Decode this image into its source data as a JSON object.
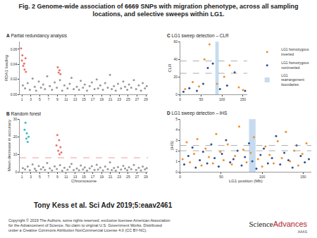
{
  "header": {
    "lines": [
      "Fig. 2 Genome-wide association of 6669 SNPs with migration phenotype, across all sampling",
      "locations, and selective sweeps within LG1."
    ]
  },
  "chart_data": [
    {
      "type": "scatter",
      "panel": "A",
      "title": "Partial redundancy analysis",
      "ylabel": "RDA1 loading",
      "xlim": [
        0.5,
        29.5
      ],
      "xticks": [
        1,
        3,
        5,
        7,
        9,
        11,
        13,
        15,
        17,
        19,
        21,
        23,
        25,
        27,
        29
      ],
      "ylim": [
        0,
        0.07
      ],
      "yticks": [
        {
          "value": 0,
          "label": "0.00"
        },
        {
          "value": 0.02,
          "label": "0.02"
        },
        {
          "value": 0.04,
          "label": "0.04"
        },
        {
          "value": 0.06,
          "label": "0.06"
        }
      ],
      "grid": false,
      "marker": "circle",
      "series": [
        {
          "color": "#9a9a9a",
          "x": [
            1.2,
            1.7,
            2.3,
            2.8,
            3.4,
            3.9,
            4.2,
            4.8,
            5.3,
            5.8,
            6.2,
            6.7,
            7.3,
            7.8,
            8.4,
            8.9,
            9.6,
            10.1,
            10.6,
            11.3,
            11.8,
            12.2,
            12.7,
            13.4,
            13.9,
            14.3,
            14.8,
            15.2,
            15.7,
            16.3,
            16.8,
            17.4,
            17.9,
            18.2,
            18.7,
            19.3,
            19.8,
            20.4,
            20.9,
            21.3,
            21.8,
            22.2,
            22.7,
            23.4,
            23.9,
            24.3,
            24.8,
            25.2,
            25.7,
            26.3,
            26.8,
            27.4,
            27.9,
            28.3,
            28.8,
            29.2
          ],
          "values": [
            0.012,
            0.008,
            0.015,
            0.006,
            0.021,
            0.01,
            0.005,
            0.017,
            0.009,
            0.013,
            0.007,
            0.024,
            0.011,
            0.006,
            0.016,
            0.009,
            0.019,
            0.005,
            0.012,
            0.008,
            0.014,
            0.022,
            0.007,
            0.01,
            0.006,
            0.018,
            0.009,
            0.013,
            0.005,
            0.011,
            0.016,
            0.007,
            0.02,
            0.008,
            0.012,
            0.006,
            0.015,
            0.009,
            0.026,
            0.007,
            0.011,
            0.005,
            0.014,
            0.008,
            0.017,
            0.01,
            0.006,
            0.013,
            0.009,
            0.019,
            0.007,
            0.012,
            0.005,
            0.015,
            0.008,
            0.011
          ]
        },
        {
          "color": "#e8726b",
          "x": [
            0.8,
            1.0,
            1.1,
            1.3,
            1.5,
            1.6,
            1.8,
            1.9,
            9.1,
            9.3,
            9.5,
            9.7
          ],
          "values": [
            0.061,
            0.045,
            0.052,
            0.038,
            0.041,
            0.033,
            0.048,
            0.03,
            0.036,
            0.029,
            0.032,
            0.027
          ]
        }
      ]
    },
    {
      "type": "scatter",
      "panel": "B",
      "title": "Random forest",
      "xlabel": "Chromosome",
      "ylabel": "Mean decrease in accuracy",
      "xlim": [
        0.5,
        29.5
      ],
      "xticks": [
        1,
        3,
        5,
        7,
        9,
        11,
        13,
        15,
        17,
        19,
        21,
        23,
        25,
        27,
        29
      ],
      "ylim": [
        0,
        30
      ],
      "yticks": [
        0,
        10,
        20,
        30
      ],
      "grid": false,
      "marker": "circle",
      "hlines": [
        8
      ],
      "hline_color": "#e8726b",
      "series": [
        {
          "color": "#9a9a9a",
          "x": [
            1.2,
            1.7,
            2.3,
            2.8,
            3.4,
            3.9,
            4.2,
            4.8,
            5.3,
            5.8,
            6.2,
            6.7,
            7.3,
            7.8,
            8.4,
            8.9,
            9.6,
            10.1,
            10.6,
            11.3,
            11.8,
            12.2,
            12.7,
            13.4,
            13.9,
            14.3,
            14.8,
            15.2,
            15.7,
            16.3,
            16.8,
            17.4,
            17.9,
            18.2,
            18.7,
            19.3,
            19.8,
            20.4,
            20.9,
            21.3,
            21.8,
            22.2,
            22.7,
            23.4,
            23.9,
            24.3,
            24.8,
            25.2,
            25.7,
            26.3,
            26.8,
            27.4,
            27.9,
            28.3,
            28.8,
            29.2
          ],
          "values": [
            2.1,
            1.4,
            3.0,
            0.9,
            4.2,
            1.8,
            0.7,
            3.3,
            1.5,
            2.6,
            1.1,
            5.0,
            2.0,
            0.8,
            3.1,
            1.6,
            3.8,
            0.6,
            2.3,
            1.2,
            2.8,
            4.5,
            1.0,
            1.9,
            0.9,
            3.6,
            1.4,
            2.5,
            0.7,
            2.0,
            3.2,
            1.1,
            4.0,
            1.3,
            2.4,
            0.8,
            3.0,
            1.5,
            5.4,
            1.0,
            2.2,
            0.7,
            2.7,
            1.3,
            3.4,
            1.9,
            0.9,
            2.6,
            1.5,
            3.9,
            1.1,
            2.3,
            0.8,
            3.0,
            1.4,
            2.1
          ]
        },
        {
          "color": "#3fb8c0",
          "x": [
            1.6,
            1.8,
            2.0,
            2.1,
            2.3,
            2.5
          ],
          "values": [
            24,
            28,
            19,
            22,
            17,
            20
          ]
        },
        {
          "color": "#e8726b",
          "x": [
            8.8,
            9.0,
            9.2,
            9.4,
            9.5,
            9.7,
            9.9
          ],
          "values": [
            15,
            21,
            12,
            18,
            10,
            14,
            11
          ]
        }
      ]
    },
    {
      "type": "scatter",
      "panel": "C",
      "title": "LG1 sweep detection – CLR",
      "ylabel": "CLR",
      "xlim": [
        0,
        160
      ],
      "xticks": [
        0,
        50,
        100,
        150
      ],
      "ylim": [
        0,
        60
      ],
      "yticks": [
        0,
        20,
        40,
        60
      ],
      "grid": false,
      "marker": "circle",
      "legend": "upper right",
      "hlines": [
        24,
        38
      ],
      "hline_color": "#888888",
      "band": {
        "name": "LG1 rearrangement boundaries",
        "color": "#c6dbef",
        "x": [
          84,
          92
        ]
      },
      "series": [
        {
          "name": "LG1 homozygous inverted",
          "color": "#f28e2b",
          "x": [
            12,
            30,
            45,
            58,
            70,
            88,
            105,
            118,
            140,
            150
          ],
          "values": [
            6,
            14,
            9,
            40,
            57,
            12,
            20,
            33,
            8,
            5
          ]
        },
        {
          "name": "LG1 homozygous noninverted",
          "color": "#2c4f8f",
          "x": [
            8,
            22,
            40,
            55,
            66,
            78,
            95,
            112,
            130,
            155
          ],
          "values": [
            3,
            7,
            4,
            12,
            30,
            35,
            6,
            10,
            25,
            4
          ]
        }
      ]
    },
    {
      "type": "scatter",
      "panel": "D",
      "title": "LG1 sweep detection – iHS",
      "xlabel": "LG1 position (Mb)",
      "ylabel": "|iHS|",
      "xlim": [
        0,
        160
      ],
      "xticks": [
        0,
        50,
        100,
        150
      ],
      "ylim": [
        0,
        5
      ],
      "yticks": [
        0,
        1,
        2,
        3,
        4,
        5
      ],
      "grid": false,
      "marker": "circle",
      "hlines": [
        2,
        2.5
      ],
      "hline_color": "#888888",
      "band": {
        "color": "#c6dbef",
        "x": [
          84,
          92
        ]
      },
      "series": [
        {
          "color": "#f28e2b",
          "x": [
            3,
            8,
            12,
            17,
            21,
            26,
            31,
            35,
            40,
            44,
            49,
            53,
            58,
            63,
            67,
            72,
            77,
            81,
            86,
            90,
            95,
            100,
            104,
            109,
            114,
            119,
            124,
            129,
            134,
            139,
            144,
            149,
            154
          ],
          "values": [
            1.2,
            2.8,
            0.9,
            1.7,
            3.1,
            0.6,
            2.2,
            1.4,
            0.8,
            3.6,
            1.9,
            1.1,
            2.6,
            0.7,
            1.5,
            4.3,
            2.1,
            0.9,
            1.8,
            3.3,
            1.2,
            0.5,
            2.4,
            1.6,
            0.8,
            2.9,
            1.3,
            3.8,
            1.0,
            2.0,
            0.6,
            1.7,
            2.7
          ]
        },
        {
          "color": "#2c4f8f",
          "x": [
            5,
            10,
            15,
            19,
            24,
            28,
            33,
            38,
            42,
            47,
            51,
            56,
            61,
            65,
            70,
            75,
            79,
            84,
            88,
            93,
            98,
            102,
            107,
            112,
            117,
            122,
            127,
            132,
            137,
            142,
            147,
            152,
            157
          ],
          "values": [
            0.7,
            1.5,
            2.3,
            0.4,
            1.1,
            1.9,
            0.8,
            2.6,
            1.3,
            0.5,
            1.7,
            3.0,
            0.9,
            1.2,
            2.0,
            0.6,
            1.4,
            2.7,
            1.0,
            0.3,
            1.6,
            2.2,
            0.8,
            1.3,
            3.4,
            0.7,
            1.8,
            1.1,
            0.4,
            2.5,
            1.5,
            0.9,
            1.2
          ]
        }
      ]
    }
  ],
  "footer": {
    "citation": "Tony Kess et al. Sci Adv 2019;5:eaav2461",
    "copyright": [
      "Copyright © 2019 The Authors, some rights reserved; exclusive licensee American Association",
      "for the Advancement of Science. No claim to original U.S. Government Works. Distributed",
      "under a Creative Commons Attribution NonCommercial License 4.0 (CC BY-NC)."
    ],
    "logo": {
      "first": "Science",
      "second": "Advances",
      "sub": "AAAS"
    }
  }
}
